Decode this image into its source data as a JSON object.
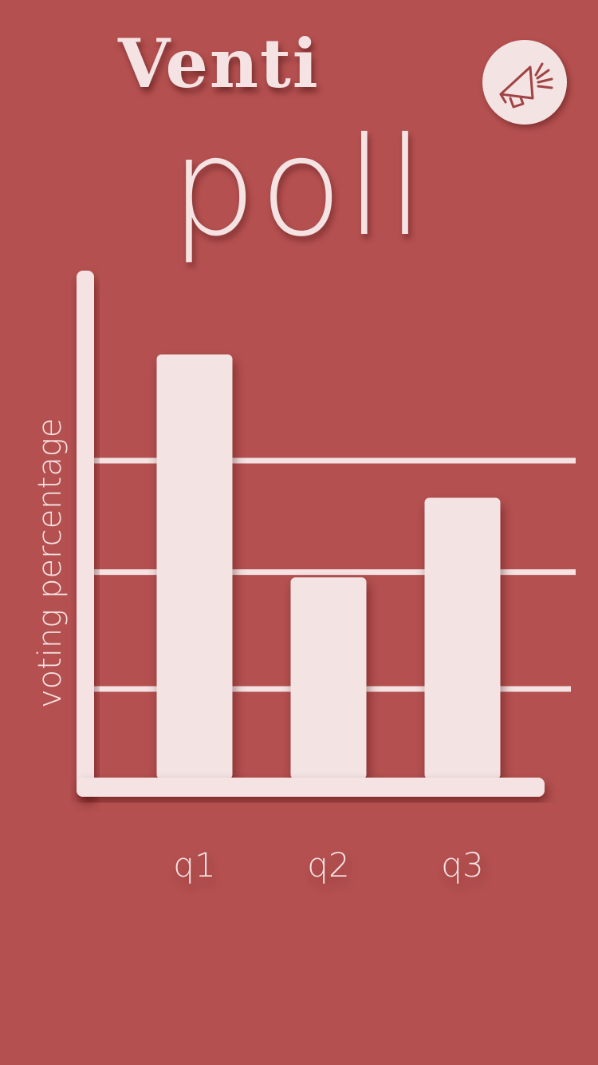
{
  "app": {
    "brand": "Venti",
    "heading": "poll"
  },
  "header": {
    "announce_icon": "megaphone-icon"
  },
  "colors": {
    "background": "#b55050",
    "foreground": "#f5e3e3",
    "bar": "#f4e3e3",
    "icon": "#a04343"
  },
  "chart_data": {
    "type": "bar",
    "ylabel": "voting percentage",
    "xlabel": "",
    "categories": [
      "q1",
      "q2",
      "q3"
    ],
    "values": [
      80,
      38,
      53
    ],
    "ylim": [
      0,
      100
    ],
    "gridlines": [
      17,
      39,
      60
    ],
    "grid": true
  }
}
